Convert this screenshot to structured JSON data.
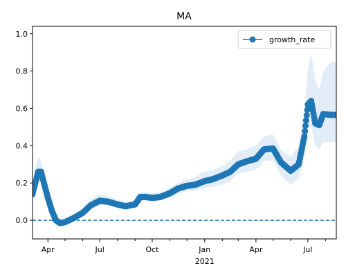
{
  "chart_data": {
    "type": "line",
    "title": "MA",
    "xlabel": "",
    "ylabel": "",
    "x_start": "2020-03-05",
    "x_end": "2021-08-20",
    "ylim": [
      -0.1,
      1.04
    ],
    "x_ticks": [
      {
        "date": "2020-04-01",
        "label": "Apr"
      },
      {
        "date": "2020-07-01",
        "label": "Jul"
      },
      {
        "date": "2020-10-01",
        "label": "Oct"
      },
      {
        "date": "2021-01-01",
        "label": "Jan"
      },
      {
        "date": "2021-04-01",
        "label": "Apr"
      },
      {
        "date": "2021-07-01",
        "label": "Jul"
      }
    ],
    "x_minor_ticks": [
      "2020-05-01",
      "2020-06-01",
      "2020-08-01",
      "2020-09-01",
      "2020-11-01",
      "2020-12-01",
      "2021-02-01",
      "2021-03-01",
      "2021-05-01",
      "2021-06-01",
      "2021-08-01"
    ],
    "year_label": {
      "date": "2021-01-01",
      "label": "2021"
    },
    "y_ticks": [
      0.0,
      0.2,
      0.4,
      0.6,
      0.8,
      1.0
    ],
    "y_tick_labels": [
      "0.0",
      "0.2",
      "0.4",
      "0.6",
      "0.8",
      "1.0"
    ],
    "hline": {
      "y": 0.0,
      "style": "dashed",
      "color": "#1f77b4"
    },
    "legend": {
      "position": "top-right",
      "entries": [
        "growth_rate"
      ]
    },
    "series": [
      {
        "name": "growth_rate",
        "color": "#1f77b4",
        "band_color": "#e3edf8",
        "points": [
          {
            "date": "2020-03-05",
            "y": 0.14,
            "lo": 0.1,
            "hi": 0.2
          },
          {
            "date": "2020-03-10",
            "y": 0.2,
            "lo": 0.14,
            "hi": 0.28
          },
          {
            "date": "2020-03-15",
            "y": 0.26,
            "lo": 0.2,
            "hi": 0.34
          },
          {
            "date": "2020-03-20",
            "y": 0.26,
            "lo": 0.21,
            "hi": 0.32
          },
          {
            "date": "2020-03-25",
            "y": 0.2,
            "lo": 0.16,
            "hi": 0.25
          },
          {
            "date": "2020-04-01",
            "y": 0.12,
            "lo": 0.09,
            "hi": 0.16
          },
          {
            "date": "2020-04-08",
            "y": 0.05,
            "lo": 0.03,
            "hi": 0.08
          },
          {
            "date": "2020-04-15",
            "y": 0.0,
            "lo": -0.02,
            "hi": 0.02
          },
          {
            "date": "2020-04-22",
            "y": -0.015,
            "lo": -0.03,
            "hi": 0.0
          },
          {
            "date": "2020-05-01",
            "y": -0.01,
            "lo": -0.02,
            "hi": 0.005
          },
          {
            "date": "2020-05-15",
            "y": 0.01,
            "lo": 0.0,
            "hi": 0.025
          },
          {
            "date": "2020-06-01",
            "y": 0.04,
            "lo": 0.02,
            "hi": 0.06
          },
          {
            "date": "2020-06-15",
            "y": 0.08,
            "lo": 0.06,
            "hi": 0.11
          },
          {
            "date": "2020-07-01",
            "y": 0.105,
            "lo": 0.08,
            "hi": 0.14
          },
          {
            "date": "2020-07-15",
            "y": 0.1,
            "lo": 0.08,
            "hi": 0.13
          },
          {
            "date": "2020-08-01",
            "y": 0.085,
            "lo": 0.065,
            "hi": 0.11
          },
          {
            "date": "2020-08-15",
            "y": 0.075,
            "lo": 0.06,
            "hi": 0.1
          },
          {
            "date": "2020-09-01",
            "y": 0.085,
            "lo": 0.07,
            "hi": 0.105
          },
          {
            "date": "2020-09-10",
            "y": 0.125,
            "lo": 0.1,
            "hi": 0.15
          },
          {
            "date": "2020-09-20",
            "y": 0.125,
            "lo": 0.1,
            "hi": 0.15
          },
          {
            "date": "2020-10-01",
            "y": 0.12,
            "lo": 0.1,
            "hi": 0.145
          },
          {
            "date": "2020-10-15",
            "y": 0.125,
            "lo": 0.105,
            "hi": 0.15
          },
          {
            "date": "2020-11-01",
            "y": 0.145,
            "lo": 0.12,
            "hi": 0.175
          },
          {
            "date": "2020-11-15",
            "y": 0.17,
            "lo": 0.14,
            "hi": 0.2
          },
          {
            "date": "2020-12-01",
            "y": 0.185,
            "lo": 0.155,
            "hi": 0.22
          },
          {
            "date": "2020-12-15",
            "y": 0.19,
            "lo": 0.16,
            "hi": 0.23
          },
          {
            "date": "2021-01-01",
            "y": 0.21,
            "lo": 0.17,
            "hi": 0.26
          },
          {
            "date": "2021-01-15",
            "y": 0.22,
            "lo": 0.18,
            "hi": 0.27
          },
          {
            "date": "2021-02-01",
            "y": 0.24,
            "lo": 0.19,
            "hi": 0.29
          },
          {
            "date": "2021-02-15",
            "y": 0.26,
            "lo": 0.21,
            "hi": 0.32
          },
          {
            "date": "2021-03-01",
            "y": 0.3,
            "lo": 0.25,
            "hi": 0.37
          },
          {
            "date": "2021-03-15",
            "y": 0.315,
            "lo": 0.26,
            "hi": 0.38
          },
          {
            "date": "2021-04-01",
            "y": 0.33,
            "lo": 0.27,
            "hi": 0.4
          },
          {
            "date": "2021-04-15",
            "y": 0.38,
            "lo": 0.32,
            "hi": 0.45
          },
          {
            "date": "2021-05-01",
            "y": 0.385,
            "lo": 0.32,
            "hi": 0.46
          },
          {
            "date": "2021-05-15",
            "y": 0.31,
            "lo": 0.24,
            "hi": 0.38
          },
          {
            "date": "2021-06-01",
            "y": 0.265,
            "lo": 0.19,
            "hi": 0.34
          },
          {
            "date": "2021-06-15",
            "y": 0.3,
            "lo": 0.22,
            "hi": 0.4
          },
          {
            "date": "2021-06-25",
            "y": 0.45,
            "lo": 0.34,
            "hi": 0.58
          },
          {
            "date": "2021-07-01",
            "y": 0.62,
            "lo": 0.5,
            "hi": 0.8
          },
          {
            "date": "2021-07-07",
            "y": 0.64,
            "lo": 0.5,
            "hi": 0.9
          },
          {
            "date": "2021-07-14",
            "y": 0.52,
            "lo": 0.4,
            "hi": 0.75
          },
          {
            "date": "2021-07-21",
            "y": 0.51,
            "lo": 0.38,
            "hi": 0.7
          },
          {
            "date": "2021-07-28",
            "y": 0.57,
            "lo": 0.42,
            "hi": 0.8
          },
          {
            "date": "2021-08-10",
            "y": 0.565,
            "lo": 0.42,
            "hi": 0.85
          },
          {
            "date": "2021-08-20",
            "y": 0.565,
            "lo": 0.42,
            "hi": 0.85
          }
        ]
      }
    ]
  }
}
